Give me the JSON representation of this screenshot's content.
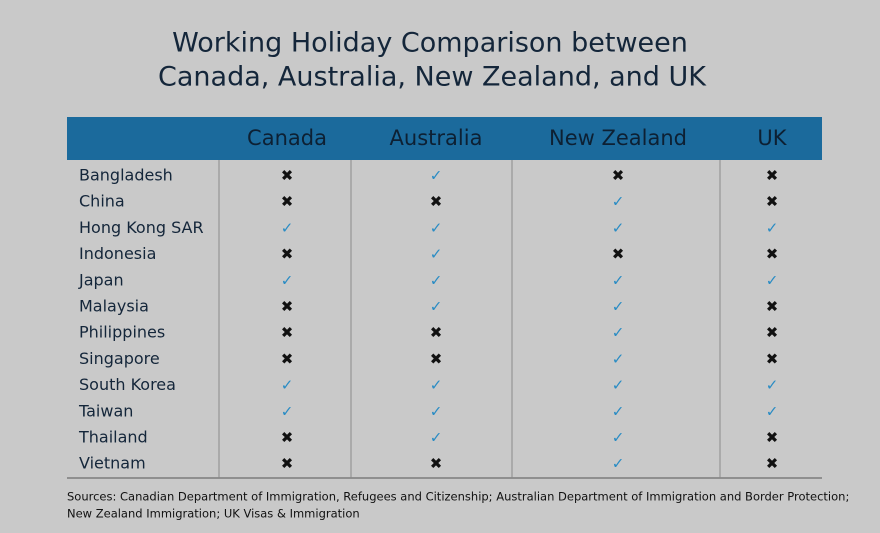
{
  "title": [
    "Working Holiday Comparison between",
    "Canada, Australia, New Zealand, and UK"
  ],
  "table": {
    "header": [
      "Canada",
      "Australia",
      "New Zealand",
      "UK"
    ],
    "rows": [
      [
        "Bangladesh",
        "✖",
        "✓",
        "✖",
        "✖"
      ],
      [
        "China",
        "✖",
        "✖",
        "✓",
        "✖"
      ],
      [
        "Hong Kong SAR",
        "✓",
        "✓",
        "✓",
        "✓"
      ],
      [
        "Indonesia",
        "✖",
        "✓",
        "✖",
        "✖"
      ],
      [
        "Japan",
        "✓",
        "✓",
        "✓",
        "✓"
      ],
      [
        "Malaysia",
        "✖",
        "✓",
        "✓",
        "✖"
      ],
      [
        "Philippines",
        "✖",
        "✖",
        "✓",
        "✖"
      ],
      [
        "Singapore",
        "✖",
        "✖",
        "✓",
        "✖"
      ],
      [
        "South Korea",
        "✓",
        "✓",
        "✓",
        "✓"
      ],
      [
        "Taiwan",
        "✓",
        "✓",
        "✓",
        "✓"
      ],
      [
        "Thailand",
        "✖",
        "✓",
        "✓",
        "✖"
      ],
      [
        "Vietnam",
        "✖",
        "✖",
        "✓",
        "✖"
      ]
    ],
    "symbol_colors": {
      "✓": "#2a8cc4",
      "✖": "#111111"
    }
  },
  "sources": [
    "Sources: Canadian Department of Immigration, Refugees and Citizenship; Australian Department of Immigration and Border Protection;",
    "New Zealand Immigration; UK Visas & Immigration"
  ]
}
